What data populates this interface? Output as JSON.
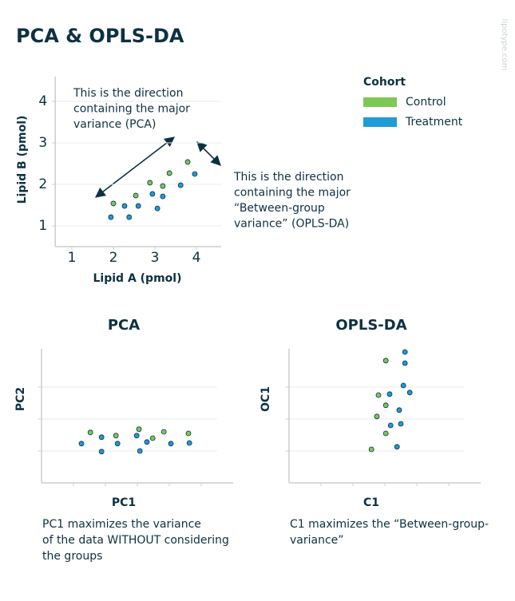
{
  "title": "PCA & OPLS-DA",
  "watermark": "lipotype.com",
  "legend_title": "Cohort",
  "chart_data": [
    {
      "type": "scatter",
      "xlabel": "Lipid A (pmol)",
      "ylabel": "Lipid B (pmol)",
      "xlim": [
        0.6,
        4.6
      ],
      "ylim": [
        0.5,
        4.6
      ],
      "xticks": [
        1,
        2,
        3,
        4
      ],
      "yticks": [
        1,
        2,
        3,
        4
      ],
      "grid": true,
      "annotations": [
        [
          "This is the direction",
          "containing the major",
          "variance (PCA)"
        ],
        [
          "This is the direction",
          "containing the major",
          "“Between-group",
          "variance” (OPLS-DA)"
        ]
      ],
      "series": [
        {
          "name": "Control",
          "color": "#7ec856",
          "x": [
            2.0,
            2.54,
            2.88,
            3.19,
            3.35,
            3.79
          ],
          "values": [
            1.54,
            1.73,
            2.04,
            1.96,
            2.27,
            2.54
          ]
        },
        {
          "name": "Treatment",
          "color": "#1f9bd7",
          "x": [
            1.94,
            2.27,
            2.38,
            2.6,
            2.94,
            3.06,
            3.19,
            3.62,
            3.96
          ],
          "values": [
            1.21,
            1.48,
            1.21,
            1.48,
            1.77,
            1.42,
            1.71,
            1.98,
            2.25
          ]
        }
      ]
    },
    {
      "type": "scatter",
      "title": "PCA",
      "xlabel": "PC1",
      "ylabel": "PC2",
      "xlim": [
        0,
        6
      ],
      "ylim": [
        0,
        4.2
      ],
      "xticks": [
        1,
        2,
        3,
        4,
        5
      ],
      "yticks": [
        1,
        2,
        3
      ],
      "grid": true,
      "caption": [
        "PC1 maximizes the variance",
        "of the data WITHOUT considering",
        "the groups"
      ],
      "series": [
        {
          "color": "#7ec856",
          "x": [
            1.53,
            2.33,
            3.05,
            3.48,
            3.83,
            4.6
          ],
          "values": [
            1.58,
            1.48,
            1.68,
            1.4,
            1.6,
            1.55
          ]
        },
        {
          "color": "#1f9bd7",
          "x": [
            1.25,
            1.88,
            1.88,
            2.38,
            2.98,
            3.08,
            3.3,
            4.05,
            4.63
          ],
          "values": [
            1.23,
            1.43,
            0.98,
            1.23,
            1.48,
            1.0,
            1.28,
            1.23,
            1.25
          ]
        }
      ]
    },
    {
      "type": "scatter",
      "title": "OPLS-DA",
      "xlabel": "C1",
      "ylabel": "OC1",
      "xlim": [
        0,
        6
      ],
      "ylim": [
        0,
        4.2
      ],
      "xticks": [
        1,
        2,
        3,
        4,
        5
      ],
      "yticks": [
        1,
        2,
        3
      ],
      "grid": true,
      "caption": [
        "C1 maximizes the “Between-group-",
        "variance”"
      ],
      "series": [
        {
          "color": "#7ec856",
          "x": [
            2.58,
            3.03,
            2.75,
            3.03,
            2.8,
            3.03
          ],
          "values": [
            1.05,
            1.55,
            2.08,
            2.43,
            2.75,
            3.83
          ]
        },
        {
          "color": "#1f9bd7",
          "x": [
            3.38,
            3.18,
            3.5,
            3.45,
            3.15,
            3.58,
            3.78,
            3.63,
            3.63
          ],
          "values": [
            1.13,
            1.8,
            1.85,
            2.28,
            2.78,
            3.05,
            2.83,
            3.75,
            4.1
          ]
        }
      ]
    }
  ]
}
